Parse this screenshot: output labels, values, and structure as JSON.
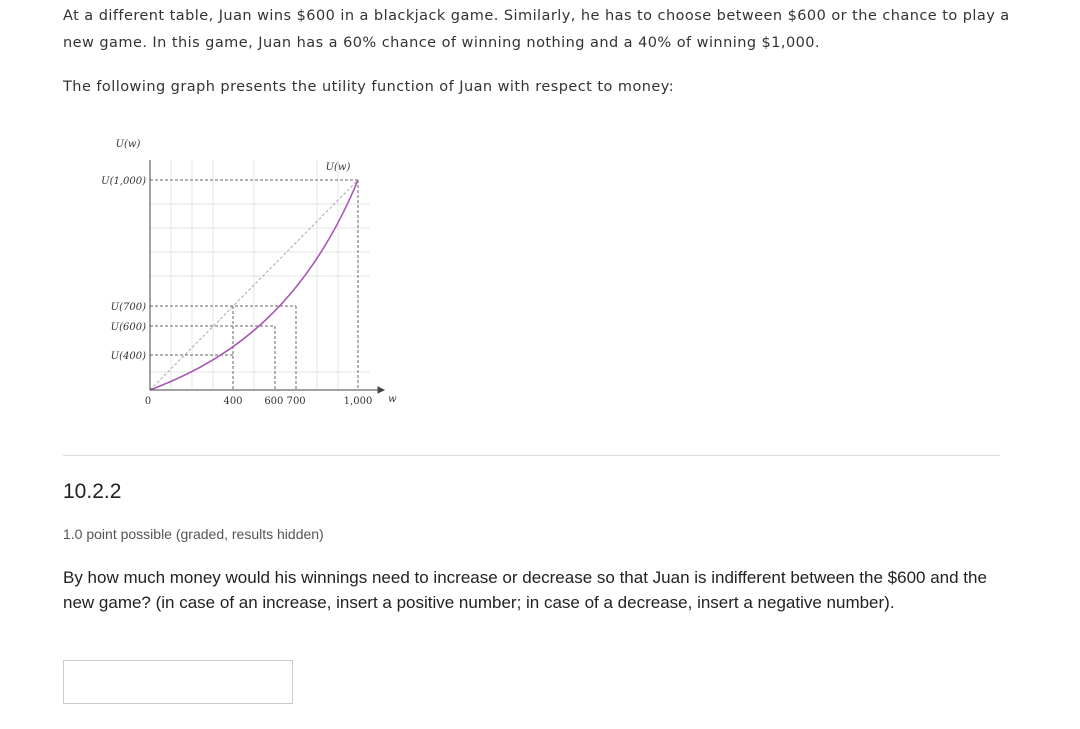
{
  "intro": {
    "paragraph1": "At a different table, Juan wins $600 in a blackjack game. Similarly, he has to choose between $600 or the chance to play a new game. In this game, Juan has a 60% chance of winning nothing and a 40% of winning $1,000.",
    "paragraph2": "The following graph presents the utility function of Juan with respect to money:"
  },
  "graph": {
    "y_axis_title": "U(w)",
    "curve_label": "U(w)",
    "y_labels": [
      "U(1,000)",
      "U(700)",
      "U(600)",
      "U(400)"
    ],
    "x_labels": [
      "0",
      "400",
      "600 700",
      "1,000"
    ],
    "x_axis_title": "w"
  },
  "problem": {
    "number": "10.2.2",
    "points": "1.0 point possible (graded, results hidden)",
    "question": "By how much money would his winnings need to increase or decrease so that Juan is indifferent between the $600 and the new game? (in case of an increase, insert a positive number; in case of a decrease, insert a negative number)."
  }
}
